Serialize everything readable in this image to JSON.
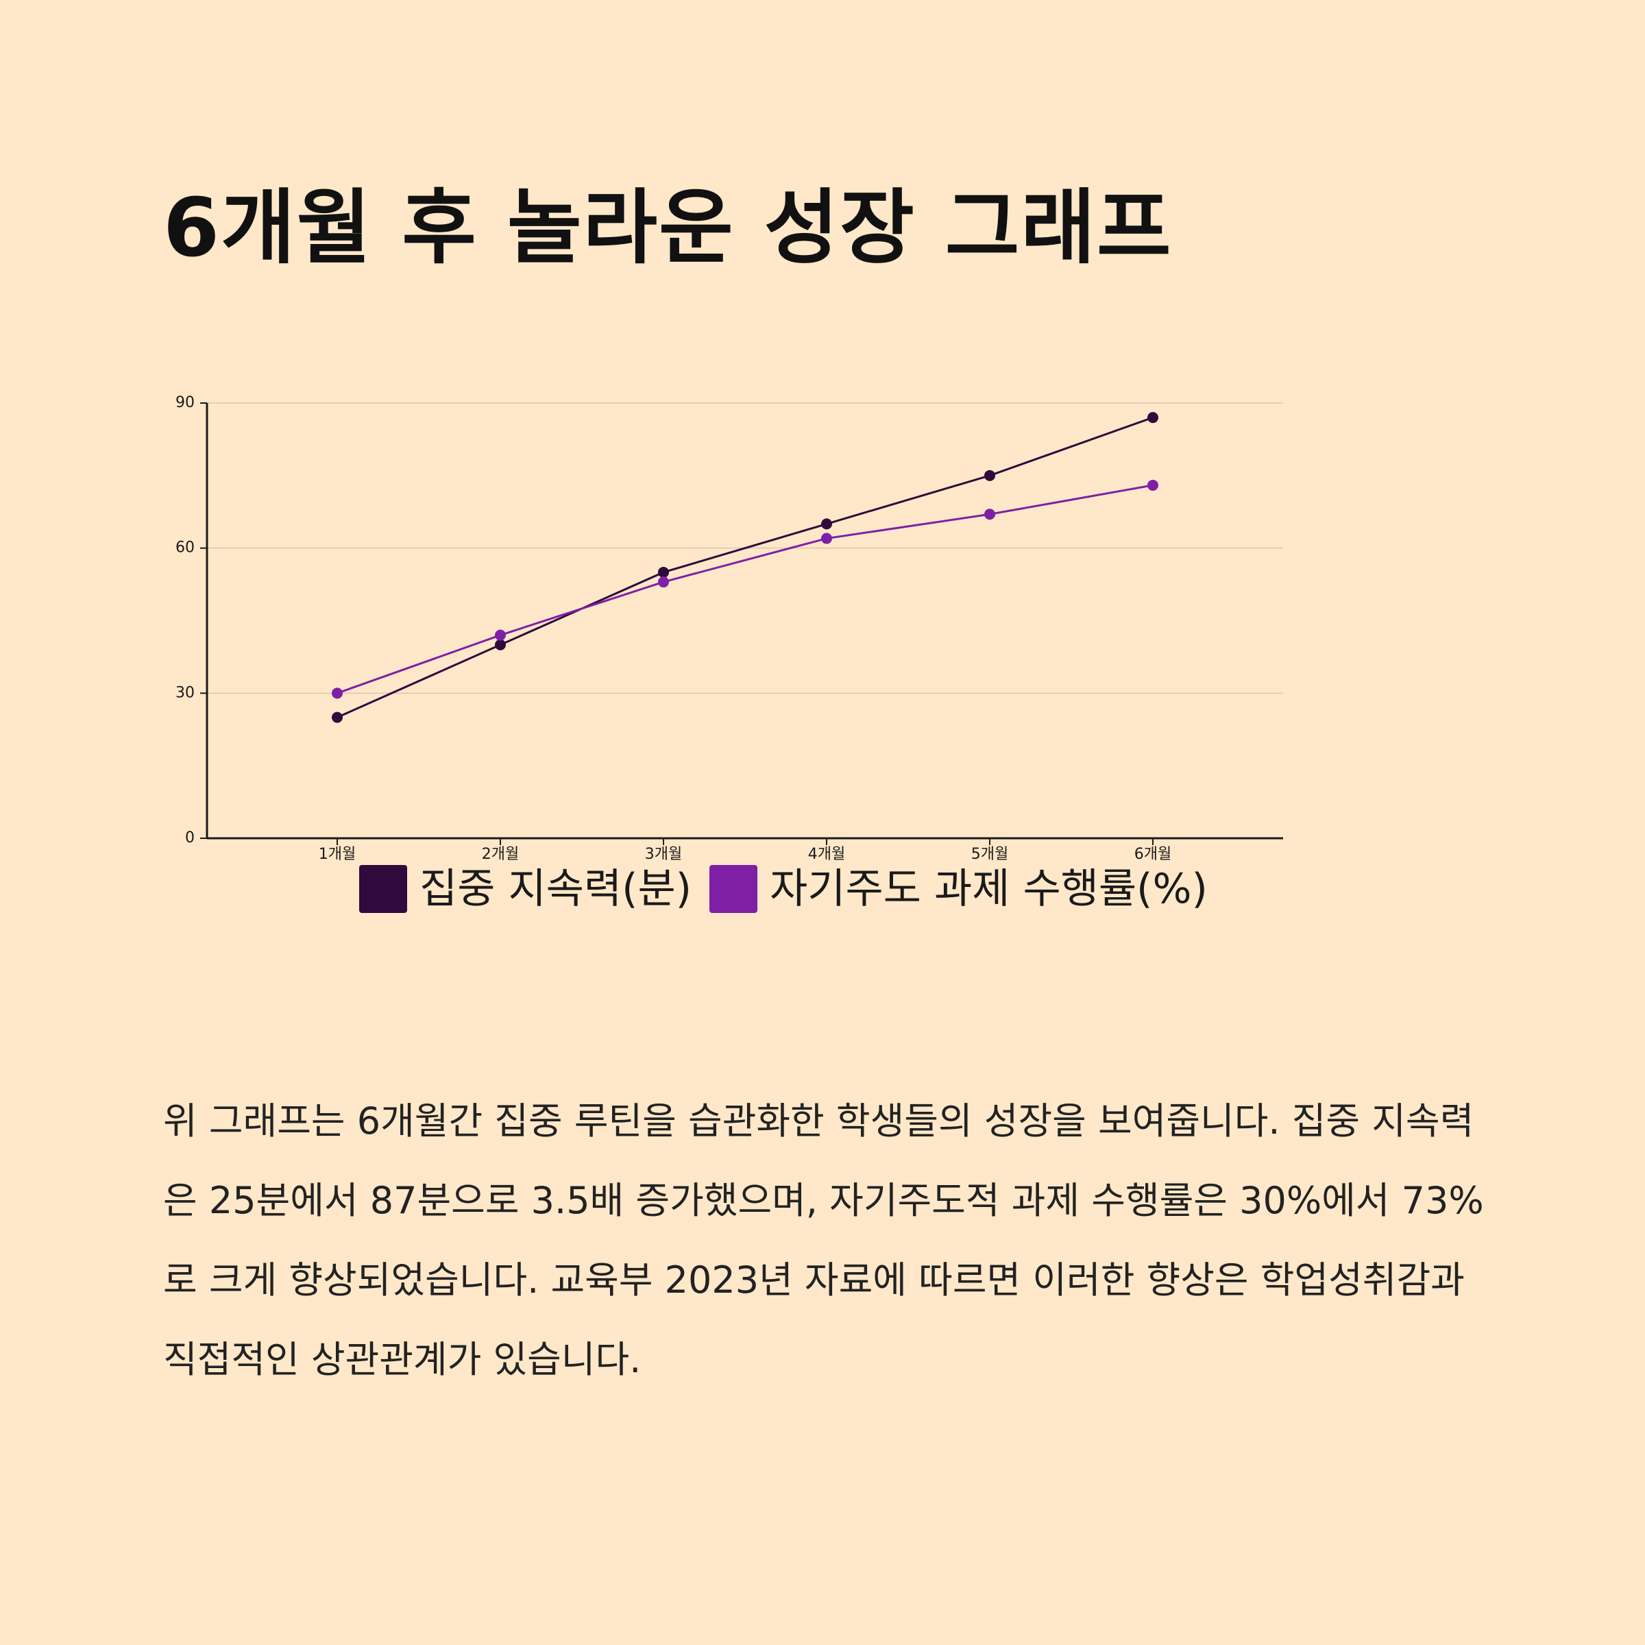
{
  "title": "6개월 후 놀라운 성장 그래프",
  "description": "위 그래프는 6개월간 집중 루틴을 습관화한 학생들의 성장을 보여줍니다. 집중 지속력은 25분에서 87분으로 3.5배 증가했으며, 자기주도적 과제 수행률은 30%에서 73%로 크게 향상되었습니다. 교육부 2023년 자료에 따르면 이러한 향상은 학업성취감과 직접적인 상관관계가 있습니다.",
  "chart_data": {
    "type": "line",
    "categories": [
      "1개월",
      "2개월",
      "3개월",
      "4개월",
      "5개월",
      "6개월"
    ],
    "series": [
      {
        "name": "집중 지속력(분)",
        "values": [
          25,
          40,
          55,
          65,
          75,
          87
        ],
        "color": "#2f0a3c"
      },
      {
        "name": "자기주도 과제 수행률(%)",
        "values": [
          30,
          42,
          53,
          62,
          67,
          73
        ],
        "color": "#7e1fa6"
      }
    ],
    "ylim": [
      0,
      90
    ],
    "yticks": [
      "0",
      "30",
      "60",
      "90"
    ],
    "grid": true,
    "legend_position": "bottom"
  }
}
